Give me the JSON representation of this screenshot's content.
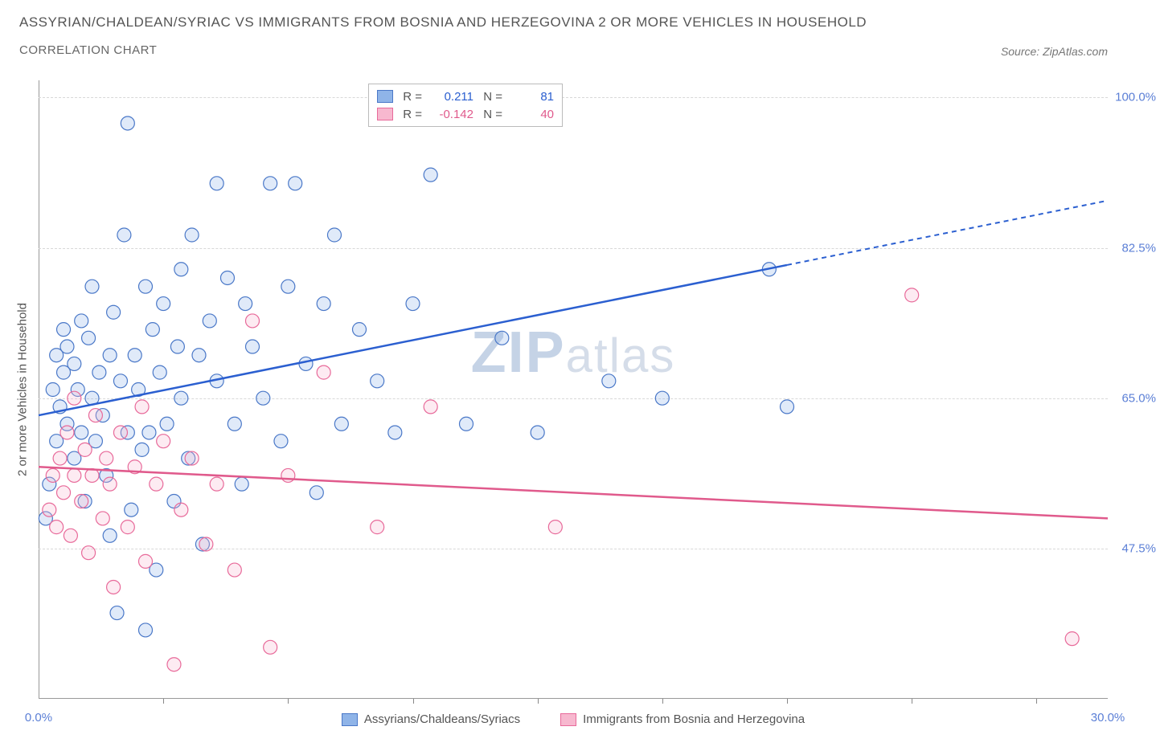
{
  "title": "ASSYRIAN/CHALDEAN/SYRIAC VS IMMIGRANTS FROM BOSNIA AND HERZEGOVINA 2 OR MORE VEHICLES IN HOUSEHOLD",
  "subtitle": "CORRELATION CHART",
  "source": "Source: ZipAtlas.com",
  "ylabel": "2 or more Vehicles in Household",
  "watermark_a": "ZIP",
  "watermark_b": "atlas",
  "chart": {
    "type": "scatter",
    "xlim": [
      0,
      30
    ],
    "ylim": [
      30,
      102
    ],
    "x_ticks_labels": [
      {
        "pos": 0,
        "label": "0.0%"
      },
      {
        "pos": 30,
        "label": "30.0%"
      }
    ],
    "x_minor_ticks": [
      3.5,
      7,
      10.5,
      14,
      17.5,
      21,
      24.5,
      28
    ],
    "y_ticks": [
      {
        "pos": 47.5,
        "label": "47.5%"
      },
      {
        "pos": 65.0,
        "label": "65.0%"
      },
      {
        "pos": 82.5,
        "label": "82.5%"
      },
      {
        "pos": 100.0,
        "label": "100.0%"
      }
    ],
    "background_color": "#ffffff",
    "grid_color": "#d8d8d8",
    "series": [
      {
        "id": "assyrian",
        "label": "Assyrians/Chaldeans/Syriacs",
        "fill": "#8fb4e8",
        "stroke": "#4a78c8",
        "line_color": "#2b5fd0",
        "r_value": "0.211",
        "n_value": "81",
        "trend": {
          "y_at_x0": 63,
          "y_at_x30": 88,
          "solid_until_x": 21
        },
        "points": [
          [
            0.2,
            51
          ],
          [
            0.3,
            55
          ],
          [
            0.4,
            66
          ],
          [
            0.5,
            70
          ],
          [
            0.5,
            60
          ],
          [
            0.6,
            64
          ],
          [
            0.7,
            68
          ],
          [
            0.7,
            73
          ],
          [
            0.8,
            62
          ],
          [
            0.8,
            71
          ],
          [
            1.0,
            58
          ],
          [
            1.0,
            69
          ],
          [
            1.1,
            66
          ],
          [
            1.2,
            74
          ],
          [
            1.2,
            61
          ],
          [
            1.3,
            53
          ],
          [
            1.4,
            72
          ],
          [
            1.5,
            65
          ],
          [
            1.5,
            78
          ],
          [
            1.6,
            60
          ],
          [
            1.7,
            68
          ],
          [
            1.8,
            63
          ],
          [
            1.9,
            56
          ],
          [
            2.0,
            70
          ],
          [
            2.0,
            49
          ],
          [
            2.1,
            75
          ],
          [
            2.2,
            40
          ],
          [
            2.3,
            67
          ],
          [
            2.4,
            84
          ],
          [
            2.5,
            61
          ],
          [
            2.5,
            97
          ],
          [
            2.6,
            52
          ],
          [
            2.7,
            70
          ],
          [
            2.8,
            66
          ],
          [
            2.9,
            59
          ],
          [
            3.0,
            78
          ],
          [
            3.0,
            38
          ],
          [
            3.1,
            61
          ],
          [
            3.2,
            73
          ],
          [
            3.3,
            45
          ],
          [
            3.4,
            68
          ],
          [
            3.5,
            76
          ],
          [
            3.6,
            62
          ],
          [
            3.8,
            53
          ],
          [
            3.9,
            71
          ],
          [
            4.0,
            80
          ],
          [
            4.0,
            65
          ],
          [
            4.2,
            58
          ],
          [
            4.3,
            84
          ],
          [
            4.5,
            70
          ],
          [
            4.6,
            48
          ],
          [
            4.8,
            74
          ],
          [
            5.0,
            67
          ],
          [
            5.0,
            90
          ],
          [
            5.3,
            79
          ],
          [
            5.5,
            62
          ],
          [
            5.7,
            55
          ],
          [
            5.8,
            76
          ],
          [
            6.0,
            71
          ],
          [
            6.3,
            65
          ],
          [
            6.5,
            90
          ],
          [
            6.8,
            60
          ],
          [
            7.0,
            78
          ],
          [
            7.2,
            90
          ],
          [
            7.5,
            69
          ],
          [
            7.8,
            54
          ],
          [
            8.0,
            76
          ],
          [
            8.3,
            84
          ],
          [
            8.5,
            62
          ],
          [
            9.0,
            73
          ],
          [
            9.5,
            67
          ],
          [
            10.0,
            61
          ],
          [
            10.5,
            76
          ],
          [
            11.0,
            91
          ],
          [
            12.0,
            62
          ],
          [
            13.0,
            72
          ],
          [
            14.0,
            61
          ],
          [
            16.0,
            67
          ],
          [
            17.5,
            65
          ],
          [
            20.5,
            80
          ],
          [
            21.0,
            64
          ]
        ]
      },
      {
        "id": "bosnia",
        "label": "Immigrants from Bosnia and Herzegovina",
        "fill": "#f7b8cf",
        "stroke": "#e86a9a",
        "line_color": "#e05a8c",
        "r_value": "-0.142",
        "n_value": "40",
        "trend": {
          "y_at_x0": 57,
          "y_at_x30": 51,
          "solid_until_x": 30
        },
        "points": [
          [
            0.3,
            52
          ],
          [
            0.4,
            56
          ],
          [
            0.5,
            50
          ],
          [
            0.6,
            58
          ],
          [
            0.7,
            54
          ],
          [
            0.8,
            61
          ],
          [
            0.9,
            49
          ],
          [
            1.0,
            56
          ],
          [
            1.0,
            65
          ],
          [
            1.2,
            53
          ],
          [
            1.3,
            59
          ],
          [
            1.4,
            47
          ],
          [
            1.5,
            56
          ],
          [
            1.6,
            63
          ],
          [
            1.8,
            51
          ],
          [
            1.9,
            58
          ],
          [
            2.0,
            55
          ],
          [
            2.1,
            43
          ],
          [
            2.3,
            61
          ],
          [
            2.5,
            50
          ],
          [
            2.7,
            57
          ],
          [
            2.9,
            64
          ],
          [
            3.0,
            46
          ],
          [
            3.3,
            55
          ],
          [
            3.5,
            60
          ],
          [
            3.8,
            34
          ],
          [
            4.0,
            52
          ],
          [
            4.3,
            58
          ],
          [
            4.7,
            48
          ],
          [
            5.0,
            55
          ],
          [
            5.5,
            45
          ],
          [
            6.0,
            74
          ],
          [
            6.5,
            36
          ],
          [
            7.0,
            56
          ],
          [
            8.0,
            68
          ],
          [
            9.5,
            50
          ],
          [
            11.0,
            64
          ],
          [
            14.5,
            50
          ],
          [
            24.5,
            77
          ],
          [
            29.0,
            37
          ]
        ]
      }
    ],
    "legend_stats": {
      "r_label": "R =",
      "n_label": "N ="
    }
  },
  "bottom_legend": [
    {
      "series": "assyrian"
    },
    {
      "series": "bosnia"
    }
  ]
}
